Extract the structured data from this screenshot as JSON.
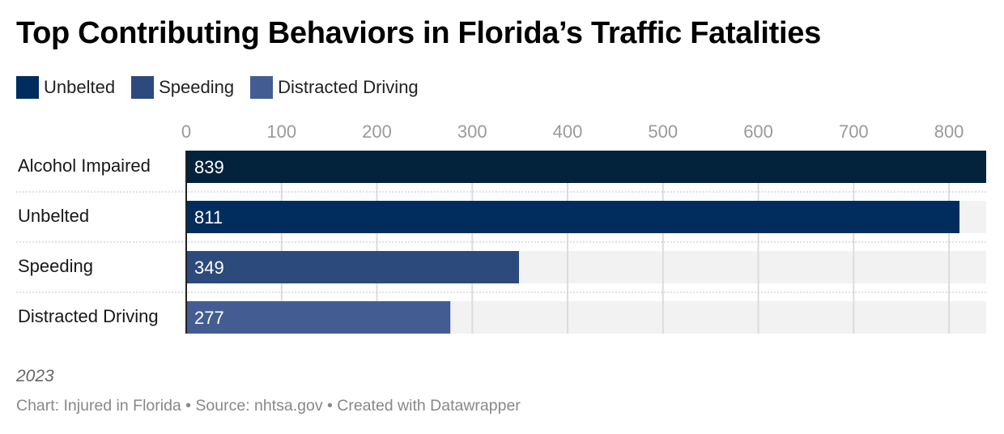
{
  "title": "Top Contributing Behaviors in Florida’s Traffic Fatalities",
  "legend": [
    {
      "label": "Unbelted",
      "color": "#002d5e"
    },
    {
      "label": "Speeding",
      "color": "#2c4a7c"
    },
    {
      "label": "Distracted Driving",
      "color": "#435d93"
    }
  ],
  "footer": {
    "note": "2023",
    "source": "Chart: Injured in Florida • Source: nhtsa.gov • Created with Datawrapper"
  },
  "chart_data": {
    "type": "bar",
    "orientation": "horizontal",
    "title": "Top Contributing Behaviors in Florida’s Traffic Fatalities",
    "categories": [
      "Alcohol Impaired",
      "Unbelted",
      "Speeding",
      "Distracted Driving"
    ],
    "values": [
      839,
      811,
      349,
      277
    ],
    "colors": [
      "#03223c",
      "#002d5e",
      "#2c4a7c",
      "#435d93"
    ],
    "xlabel": "",
    "ylabel": "",
    "xlim": [
      0,
      839
    ],
    "xticks": [
      0,
      100,
      200,
      300,
      400,
      500,
      600,
      700,
      800
    ],
    "xtick_labels": [
      "0",
      "100",
      "200",
      "300",
      "400",
      "500",
      "600",
      "700",
      "800"
    ],
    "data_labels": [
      "839",
      "811",
      "349",
      "277"
    ],
    "grid": true,
    "axis_position": "top",
    "legend_position": "top-left",
    "background_track_color": "#f2f2f2"
  }
}
